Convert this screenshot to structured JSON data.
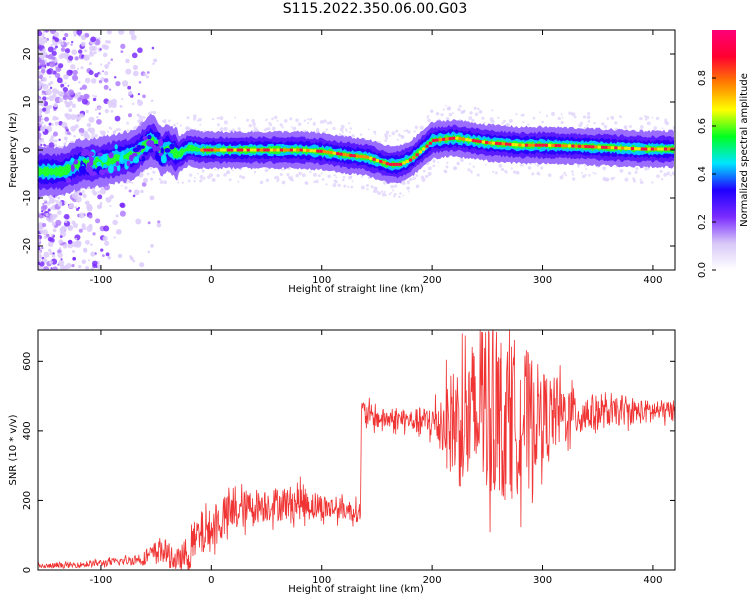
{
  "title": "S115.2022.350.06.00.G03",
  "chart_data": [
    {
      "type": "heatmap",
      "title": "S115.2022.350.06.00.G03",
      "xlabel": "Height of straight line (km)",
      "ylabel": "Frequency (Hz)",
      "xlim": [
        -157,
        420
      ],
      "ylim": [
        -25,
        25
      ],
      "x_ticks": [
        -100,
        0,
        100,
        200,
        300,
        400
      ],
      "y_ticks": [
        -20,
        -10,
        0,
        10,
        20
      ],
      "colorbar": {
        "label": "Normalized spectral amplitude",
        "range": [
          0,
          1
        ],
        "ticks": [
          "0.0",
          "0.2",
          "0.4",
          "0.6",
          "0.8"
        ],
        "colormap": [
          "#ffffff",
          "#d8c8f8",
          "#7a2bff",
          "#1f00ff",
          "#00e6ff",
          "#00ff20",
          "#ffff00",
          "#ff8000",
          "#ff0030",
          "#ff0078"
        ]
      },
      "ridge": {
        "x": [
          -135,
          -120,
          -100,
          -90,
          -80,
          -70,
          -60,
          -55,
          -50,
          -45,
          -40,
          -30,
          -20,
          -10,
          0,
          20,
          50,
          80,
          100,
          120,
          140,
          160,
          170,
          180,
          190,
          200,
          220,
          250,
          280,
          300,
          330,
          360,
          390,
          420
        ],
        "frequency": [
          -4.5,
          -3,
          -2.5,
          -2,
          -1.5,
          -1,
          1,
          2,
          1.5,
          -0.5,
          0.5,
          -1,
          0.5,
          0,
          0,
          0,
          0,
          0,
          -0.3,
          -1,
          -1.5,
          -3,
          -3,
          -2,
          0,
          2,
          2.5,
          1.5,
          1,
          1,
          0.8,
          0.5,
          0.2,
          0.2
        ]
      },
      "grid": false,
      "legend": "colorbar-right"
    },
    {
      "type": "line",
      "xlabel": "Height of straight line (km)",
      "ylabel": "SNR (10 * v/v)",
      "xlim": [
        -157,
        420
      ],
      "ylim": [
        0,
        690
      ],
      "x_ticks": [
        -100,
        0,
        100,
        200,
        300,
        400
      ],
      "y_ticks": [
        0,
        200,
        400,
        600
      ],
      "color": "#f03434",
      "series": [
        {
          "x": [
            -157,
            -120,
            -100,
            -80,
            -60,
            -45,
            -30,
            -20,
            -10,
            0,
            10,
            20,
            40,
            60,
            80,
            100,
            120,
            135,
            136,
            150,
            180,
            200,
            220,
            240,
            260,
            280,
            300,
            330,
            360,
            390,
            420
          ],
          "values": [
            10,
            15,
            20,
            25,
            35,
            60,
            20,
            55,
            100,
            115,
            145,
            165,
            185,
            190,
            195,
            180,
            175,
            165,
            455,
            435,
            430,
            425,
            420,
            430,
            440,
            440,
            445,
            450,
            452,
            455,
            458
          ],
          "spread": [
            8,
            8,
            10,
            12,
            20,
            40,
            30,
            60,
            70,
            60,
            60,
            60,
            50,
            50,
            50,
            40,
            30,
            30,
            40,
            30,
            30,
            50,
            170,
            250,
            250,
            220,
            130,
            70,
            40,
            35,
            30
          ]
        }
      ],
      "grid": false
    }
  ]
}
